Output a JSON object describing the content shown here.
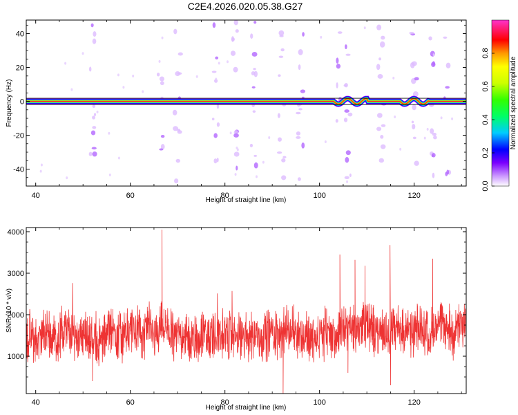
{
  "title": "C2E4.2026.020.05.38.G27",
  "chart_data": [
    {
      "type": "heatmap",
      "xlabel": "Height of straight line (km)",
      "ylabel": "Frequency (Hz)",
      "xlim": [
        38,
        131
      ],
      "ylim": [
        -50,
        48
      ],
      "xticks": [
        40,
        60,
        80,
        100,
        120
      ],
      "yticks": [
        -40,
        -20,
        0,
        20,
        40
      ],
      "grid": false,
      "description_series": {
        "ridge_frequency_hz": 0,
        "ridge_segments_km": [
          [
            38,
            131
          ]
        ],
        "wobble_regions_km": [
          [
            103,
            110
          ],
          [
            117,
            123
          ]
        ],
        "speckle_columns_km": [
          52,
          66.5,
          70,
          78,
          82,
          86,
          92,
          96,
          104,
          106,
          113,
          120,
          124,
          127
        ]
      },
      "colorbar": {
        "label": "Normalized spectral amplitude",
        "range": [
          0.0,
          1.0
        ],
        "ticks": [
          0.0,
          0.2,
          0.4,
          0.6,
          0.8
        ]
      }
    },
    {
      "type": "line",
      "xlabel": "Height of straight line (km)",
      "ylabel": "SNR (10 * v/v)",
      "xlim": [
        38,
        131
      ],
      "ylim": [
        100,
        4100
      ],
      "xticks": [
        40,
        60,
        80,
        100,
        120
      ],
      "yticks": [
        1000,
        2000,
        3000,
        4000
      ],
      "grid": false,
      "color": "#ee3333",
      "series": [
        {
          "x_step_km": 1,
          "x_start_km": 38,
          "values": [
            1480,
            1420,
            1350,
            1520,
            1560,
            1470,
            1390,
            1510,
            1620,
            1550,
            1480,
            1600,
            1530,
            1420,
            1380,
            1300,
            1450,
            1580,
            1610,
            1520,
            1490,
            1560,
            1640,
            1590,
            1500,
            1680,
            1600,
            1550,
            1720,
            1640,
            1580,
            1500,
            1560,
            1480,
            1420,
            1380,
            1460,
            1520,
            1440,
            1510,
            1590,
            1560,
            1480,
            1520,
            1460,
            1400,
            1470,
            1540,
            1500,
            1450,
            1520,
            1580,
            1560,
            1490,
            1600,
            1640,
            1580,
            1540,
            1500,
            1460,
            1420,
            1380,
            1540,
            1600,
            1520,
            1480,
            1560,
            1620,
            1680,
            1600,
            1720,
            1780,
            1700,
            1640,
            1600,
            1580,
            1520,
            1700,
            1660,
            1600,
            1560,
            1540,
            1620,
            1680,
            1600,
            1560,
            1640,
            1720,
            1680,
            1620,
            1580,
            1660,
            1700,
            1640
          ],
          "spikes": [
            [
              66.7,
              4050
            ],
            [
              104.3,
              3450
            ],
            [
              107.5,
              3320
            ],
            [
              109.6,
              3180
            ],
            [
              114.9,
              3680
            ],
            [
              123.9,
              3350
            ],
            [
              92.3,
              100
            ],
            [
              52.0,
              400
            ],
            [
              106.0,
              600
            ],
            [
              115.0,
              300
            ]
          ]
        }
      ]
    }
  ]
}
